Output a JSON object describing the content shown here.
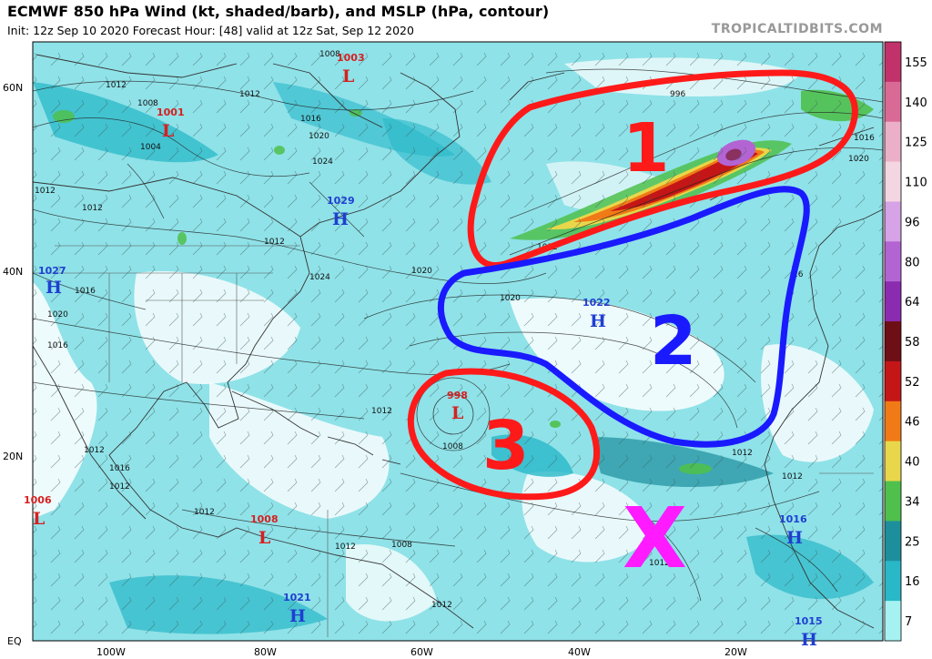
{
  "header": {
    "title": "ECMWF 850 hPa Wind (kt, shaded/barb), and MSLP (hPa, contour)",
    "subtitle": "Init: 12z Sep 10 2020   Forecast Hour: [48]   valid at 12z Sat, Sep 12 2020",
    "credit": "TROPICALTIDBITS.COM"
  },
  "axes": {
    "lat_labels": [
      "60N",
      "40N",
      "20N",
      "EQ"
    ],
    "lon_labels": [
      "100W",
      "80W",
      "60W",
      "40W",
      "20W"
    ]
  },
  "colorbar": {
    "labels": [
      "155",
      "140",
      "125",
      "110",
      "96",
      "80",
      "64",
      "58",
      "52",
      "46",
      "40",
      "34",
      "25",
      "16",
      "7"
    ],
    "colors": [
      "#c1326a",
      "#d96a96",
      "#ebb0c8",
      "#f3d6e2",
      "#d6a3e6",
      "#b364d3",
      "#8a2bb0",
      "#6e0f16",
      "#c41616",
      "#f07a16",
      "#e8d74a",
      "#4fc04c",
      "#1d8f9c",
      "#28b8c8",
      "#a6f2f2"
    ]
  },
  "pressure_centers": [
    {
      "type": "L",
      "value": "1003",
      "color": "#d62020"
    },
    {
      "type": "L",
      "value": "1001",
      "color": "#d62020"
    },
    {
      "type": "H",
      "value": "1029",
      "color": "#1f3fd1"
    },
    {
      "type": "H",
      "value": "1027",
      "color": "#1f3fd1"
    },
    {
      "type": "H",
      "value": "1022",
      "color": "#1f3fd1"
    },
    {
      "type": "L",
      "value": "998",
      "color": "#d62020"
    },
    {
      "type": "L",
      "value": "1006",
      "color": "#d62020"
    },
    {
      "type": "L",
      "value": "1008",
      "color": "#d62020"
    },
    {
      "type": "H",
      "value": "1021",
      "color": "#1f3fd1"
    },
    {
      "type": "H",
      "value": "1016",
      "color": "#1f3fd1"
    },
    {
      "type": "H",
      "value": "1015",
      "color": "#1f3fd1"
    }
  ],
  "contour_labels": [
    "1012",
    "1008",
    "1004",
    "1016",
    "1020",
    "1024",
    "1008",
    "1012",
    "1012",
    "1012",
    "1016",
    "1020",
    "1012",
    "1016",
    "1024",
    "1020",
    "1020",
    "1012",
    "1008",
    "1012",
    "1016",
    "1012",
    "1012",
    "1012",
    "1008",
    "1012",
    "1012",
    "1012",
    "996",
    "1016",
    "1020",
    "16",
    "1012",
    "1012"
  ],
  "annotations": [
    {
      "label": "1",
      "color": "#ff1a1a"
    },
    {
      "label": "2",
      "color": "#1a1aff"
    },
    {
      "label": "3",
      "color": "#ff1a1a"
    },
    {
      "label": "X",
      "color": "#ff1aff"
    }
  ]
}
